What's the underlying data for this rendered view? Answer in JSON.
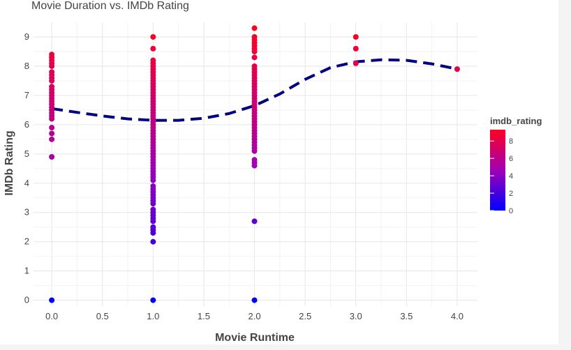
{
  "chart_data": {
    "type": "scatter",
    "title": "Movie Duration vs. IMDb Rating",
    "xlabel": "Movie Runtime",
    "ylabel": "IMDb Rating",
    "xlim": [
      -0.18,
      4.2
    ],
    "ylim": [
      -0.2,
      9.5
    ],
    "x_ticks": [
      0,
      0.5,
      1,
      1.5,
      2,
      2.5,
      3,
      3.5,
      4
    ],
    "x_tick_labels": [
      "0.0",
      "0.5",
      "1.0",
      "1.5",
      "2.0",
      "2.5",
      "3.0",
      "3.5",
      "4.0"
    ],
    "y_ticks": [
      0,
      1,
      2,
      3,
      4,
      5,
      6,
      7,
      8,
      9
    ],
    "y_tick_labels": [
      "0",
      "1",
      "2",
      "3",
      "4",
      "5",
      "6",
      "7",
      "8",
      "9"
    ],
    "grid": true,
    "color_scale": {
      "title": "imdb_rating",
      "min": 0,
      "max": 9.3,
      "low_color": "#0000ff",
      "mid_color": "#a000b4",
      "high_color": "#ff0022",
      "ticks": [
        0,
        2,
        4,
        6,
        8
      ],
      "tick_labels": [
        "0",
        "2",
        "4",
        "6",
        "8"
      ]
    },
    "scatter_groups": [
      {
        "x": 0,
        "ratings": [
          0,
          4.9,
          5.5,
          5.7,
          5.9,
          6.2,
          6.3,
          6.4,
          6.5,
          6.6,
          6.7,
          6.8,
          6.9,
          7.0,
          7.1,
          7.2,
          7.3,
          7.5,
          7.6,
          7.7,
          7.8,
          8.0,
          8.1,
          8.2,
          8.3,
          8.4
        ]
      },
      {
        "x": 1,
        "ratings": [
          0,
          2.0,
          2.3,
          2.4,
          2.5,
          2.7,
          2.8,
          2.9,
          3.0,
          3.1,
          3.3,
          3.4,
          3.5,
          3.6,
          3.7,
          3.8,
          3.9,
          4.1,
          4.2,
          4.3,
          4.4,
          4.5,
          4.6,
          4.7,
          4.8,
          4.9,
          5.0,
          5.1,
          5.2,
          5.3,
          5.4,
          5.5,
          5.6,
          5.7,
          5.8,
          5.9,
          6.0,
          6.1,
          6.2,
          6.3,
          6.4,
          6.5,
          6.6,
          6.7,
          6.8,
          6.9,
          7.0,
          7.1,
          7.2,
          7.3,
          7.4,
          7.5,
          7.6,
          7.7,
          7.8,
          7.9,
          8.0,
          8.1,
          8.2,
          8.6,
          9.0
        ]
      },
      {
        "x": 2,
        "ratings": [
          0,
          2.7,
          4.6,
          4.7,
          4.8,
          5.1,
          5.2,
          5.3,
          5.4,
          5.5,
          5.6,
          5.7,
          5.8,
          5.9,
          6.0,
          6.1,
          6.2,
          6.3,
          6.4,
          6.5,
          6.6,
          6.7,
          6.8,
          6.9,
          7.0,
          7.1,
          7.2,
          7.3,
          7.4,
          7.5,
          7.6,
          7.7,
          7.8,
          7.9,
          8.0,
          8.3,
          8.5,
          8.6,
          8.7,
          8.8,
          8.9,
          9.0,
          9.3
        ]
      },
      {
        "x": 3,
        "ratings": [
          8.1,
          8.6,
          9.0
        ]
      },
      {
        "x": 4,
        "ratings": [
          7.9
        ]
      }
    ],
    "trend_line": {
      "color": "#000080",
      "style": "dashed",
      "x": [
        0,
        0.25,
        0.5,
        0.75,
        1.0,
        1.25,
        1.5,
        1.75,
        2.0,
        2.25,
        2.5,
        2.75,
        3.0,
        3.25,
        3.5,
        3.75,
        4.0
      ],
      "y": [
        6.55,
        6.42,
        6.3,
        6.2,
        6.15,
        6.15,
        6.22,
        6.38,
        6.65,
        7.05,
        7.55,
        7.95,
        8.15,
        8.22,
        8.2,
        8.08,
        7.9
      ]
    }
  }
}
